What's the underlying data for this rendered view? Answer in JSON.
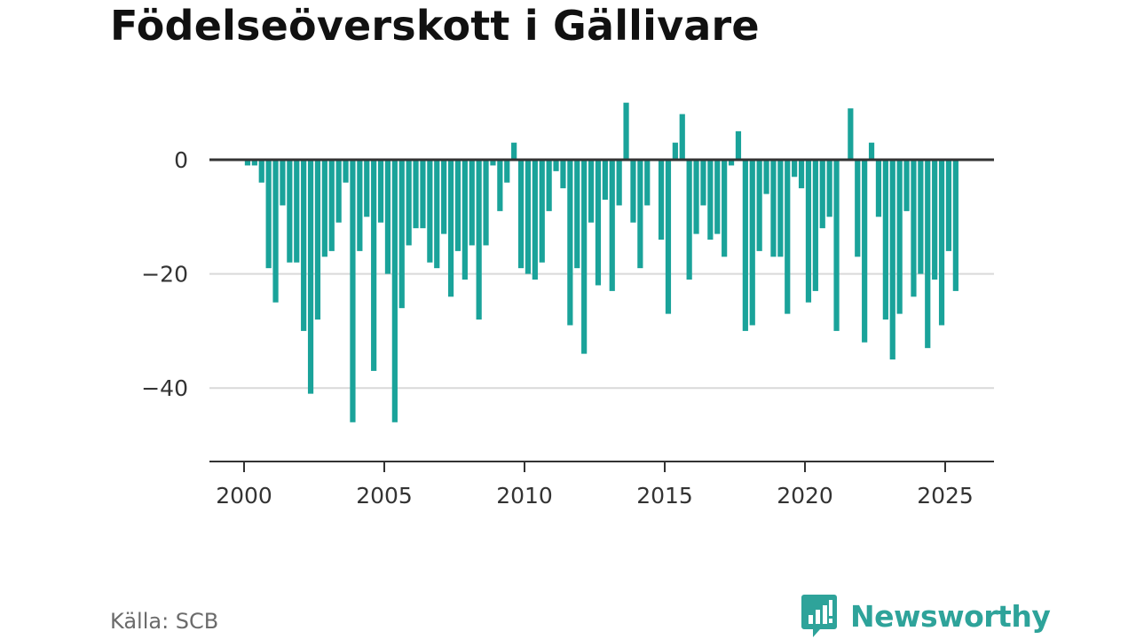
{
  "title": "Födelseöverskott i Gällivare",
  "source": "Källa: SCB",
  "brand": "Newsworthy",
  "colors": {
    "bar": "#1aa39a",
    "brand": "#2ea39a",
    "zero_line": "#333333",
    "grid": "#d9d9d9"
  },
  "chart_data": {
    "type": "bar",
    "title": "Födelseöverskott i Gällivare",
    "xlabel": "",
    "ylabel": "",
    "x_ticks": [
      "2000",
      "2005",
      "2010",
      "2015",
      "2020",
      "2025"
    ],
    "y_ticks": [
      "0",
      "−20",
      "−40"
    ],
    "ylim": [
      -53,
      13
    ],
    "grid": true,
    "x_start": 2000,
    "periods_per_year": 4,
    "values": [
      -1,
      -1,
      -4,
      -19,
      -25,
      -8,
      -18,
      -18,
      -30,
      -41,
      -28,
      -17,
      -16,
      -11,
      -4,
      -46,
      -16,
      -10,
      -37,
      -11,
      -20,
      -46,
      -26,
      -15,
      -12,
      -12,
      -18,
      -19,
      -13,
      -24,
      -16,
      -21,
      -15,
      -28,
      -15,
      -1,
      -9,
      -4,
      3,
      -19,
      -20,
      -21,
      -18,
      -9,
      -2,
      -5,
      -29,
      -19,
      -34,
      -11,
      -22,
      -7,
      -23,
      -8,
      10,
      -11,
      -19,
      -8,
      0,
      -14,
      -27,
      3,
      8,
      -21,
      -13,
      -8,
      -14,
      -13,
      -17,
      -1,
      5,
      -30,
      -29,
      -16,
      -6,
      -17,
      -17,
      -27,
      -3,
      -5,
      -25,
      -23,
      -12,
      -10,
      -30,
      0,
      9,
      -17,
      -32,
      3,
      -10,
      -28,
      -35,
      -27,
      -9,
      -24,
      -20,
      -33,
      -21,
      -29,
      -16,
      -23
    ]
  }
}
